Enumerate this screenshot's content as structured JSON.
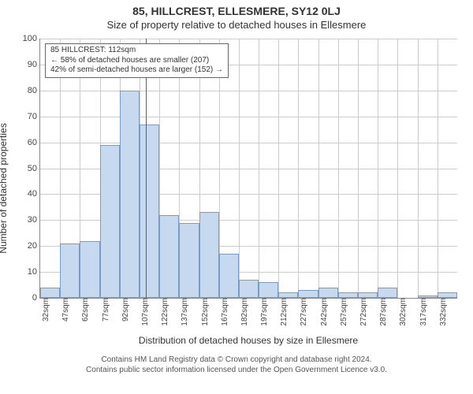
{
  "title_main": "85, HILLCREST, ELLESMERE, SY12 0LJ",
  "title_sub": "Size of property relative to detached houses in Ellesmere",
  "chart": {
    "type": "histogram",
    "ylabel": "Number of detached properties",
    "xlabel": "Distribution of detached houses by size in Ellesmere",
    "ylim": [
      0,
      100
    ],
    "ytick_step": 10,
    "bar_fill": "#c7d9ee",
    "bar_stroke": "#7a9bc4",
    "grid_color": "#cccccc",
    "background_color": "#ffffff",
    "ref_line_color": "#c0392b",
    "ref_x_value": 112,
    "x_start": 32,
    "x_step": 15,
    "x_tick_label_suffix": "sqm",
    "x_tick_positions": [
      32,
      47,
      62,
      77,
      92,
      107,
      122,
      137,
      152,
      167,
      182,
      197,
      212,
      227,
      242,
      257,
      272,
      287,
      302,
      317,
      332
    ],
    "values": [
      4,
      21,
      22,
      59,
      80,
      67,
      32,
      29,
      33,
      17,
      7,
      6,
      2,
      3,
      4,
      2,
      2,
      4,
      0,
      1,
      2
    ],
    "annotation": {
      "l1": "85 HILLCREST: 112sqm",
      "l2": "← 58% of detached houses are smaller (207)",
      "l3": "42% of semi-detached houses are larger (152) →"
    }
  },
  "footer": {
    "l1": "Contains HM Land Registry data © Crown copyright and database right 2024.",
    "l2": "Contains public sector information licensed under the Open Government Licence v3.0."
  }
}
